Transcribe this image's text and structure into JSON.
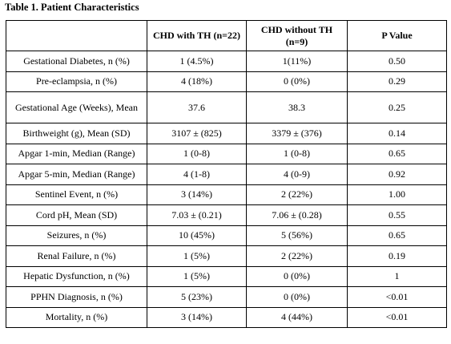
{
  "title": "Table 1. Patient Characteristics",
  "table": {
    "header": [
      "",
      "CHD with TH (n=22)",
      "CHD without TH (n=9)",
      "P Value"
    ],
    "rows": [
      [
        "Gestational Diabetes, n (%)",
        "1 (4.5%)",
        "1(11%)",
        "0.50"
      ],
      [
        "Pre-eclampsia, n (%)",
        "4 (18%)",
        "0 (0%)",
        "0.29"
      ],
      [
        "Gestational Age (Weeks), Mean",
        "37.6",
        "38.3",
        "0.25"
      ],
      [
        "Birthweight (g), Mean (SD)",
        "3107 ± (825)",
        "3379 ± (376)",
        "0.14"
      ],
      [
        "Apgar 1-min, Median (Range)",
        "1 (0-8)",
        "1 (0-8)",
        "0.65"
      ],
      [
        "Apgar 5-min, Median (Range)",
        "4 (1-8)",
        "4 (0-9)",
        "0.92"
      ],
      [
        "Sentinel Event, n (%)",
        "3 (14%)",
        "2 (22%)",
        "1.00"
      ],
      [
        "Cord pH, Mean (SD)",
        "7.03 ± (0.21)",
        "7.06 ± (0.28)",
        "0.55"
      ],
      [
        "Seizures, n (%)",
        "10 (45%)",
        "5 (56%)",
        "0.65"
      ],
      [
        "Renal Failure, n (%)",
        "1 (5%)",
        "2 (22%)",
        "0.19"
      ],
      [
        "Hepatic Dysfunction, n (%)",
        "1 (5%)",
        "0 (0%)",
        "1"
      ],
      [
        "PPHN Diagnosis, n (%)",
        "5 (23%)",
        "0 (0%)",
        "<0.01"
      ],
      [
        "Mortality, n (%)",
        "3 (14%)",
        "4 (44%)",
        "<0.01"
      ]
    ]
  }
}
